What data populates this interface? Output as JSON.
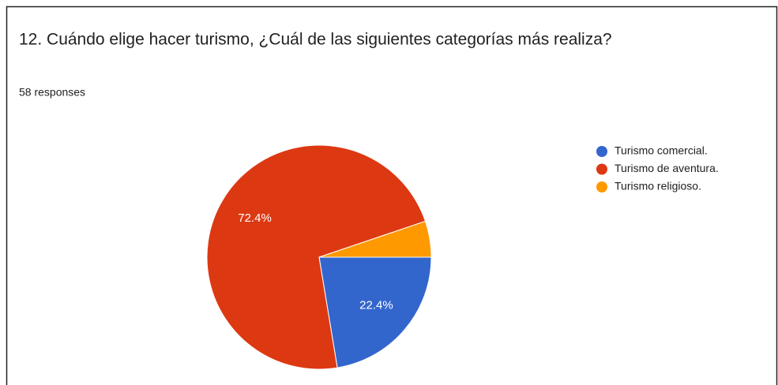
{
  "chart_data": {
    "type": "pie",
    "title": "12. Cuándo elige hacer turismo, ¿Cuál de las siguientes categorías más realiza?",
    "subtitle": "58 responses",
    "categories": [
      "Turismo comercial.",
      "Turismo de aventura.",
      "Turismo religioso."
    ],
    "values": [
      22.4,
      72.4,
      5.2
    ],
    "value_labels": [
      "22.4%",
      "72.4%",
      null
    ],
    "colors": [
      "#3366cc",
      "#dc3912",
      "#ff9900"
    ],
    "legend": "right"
  }
}
